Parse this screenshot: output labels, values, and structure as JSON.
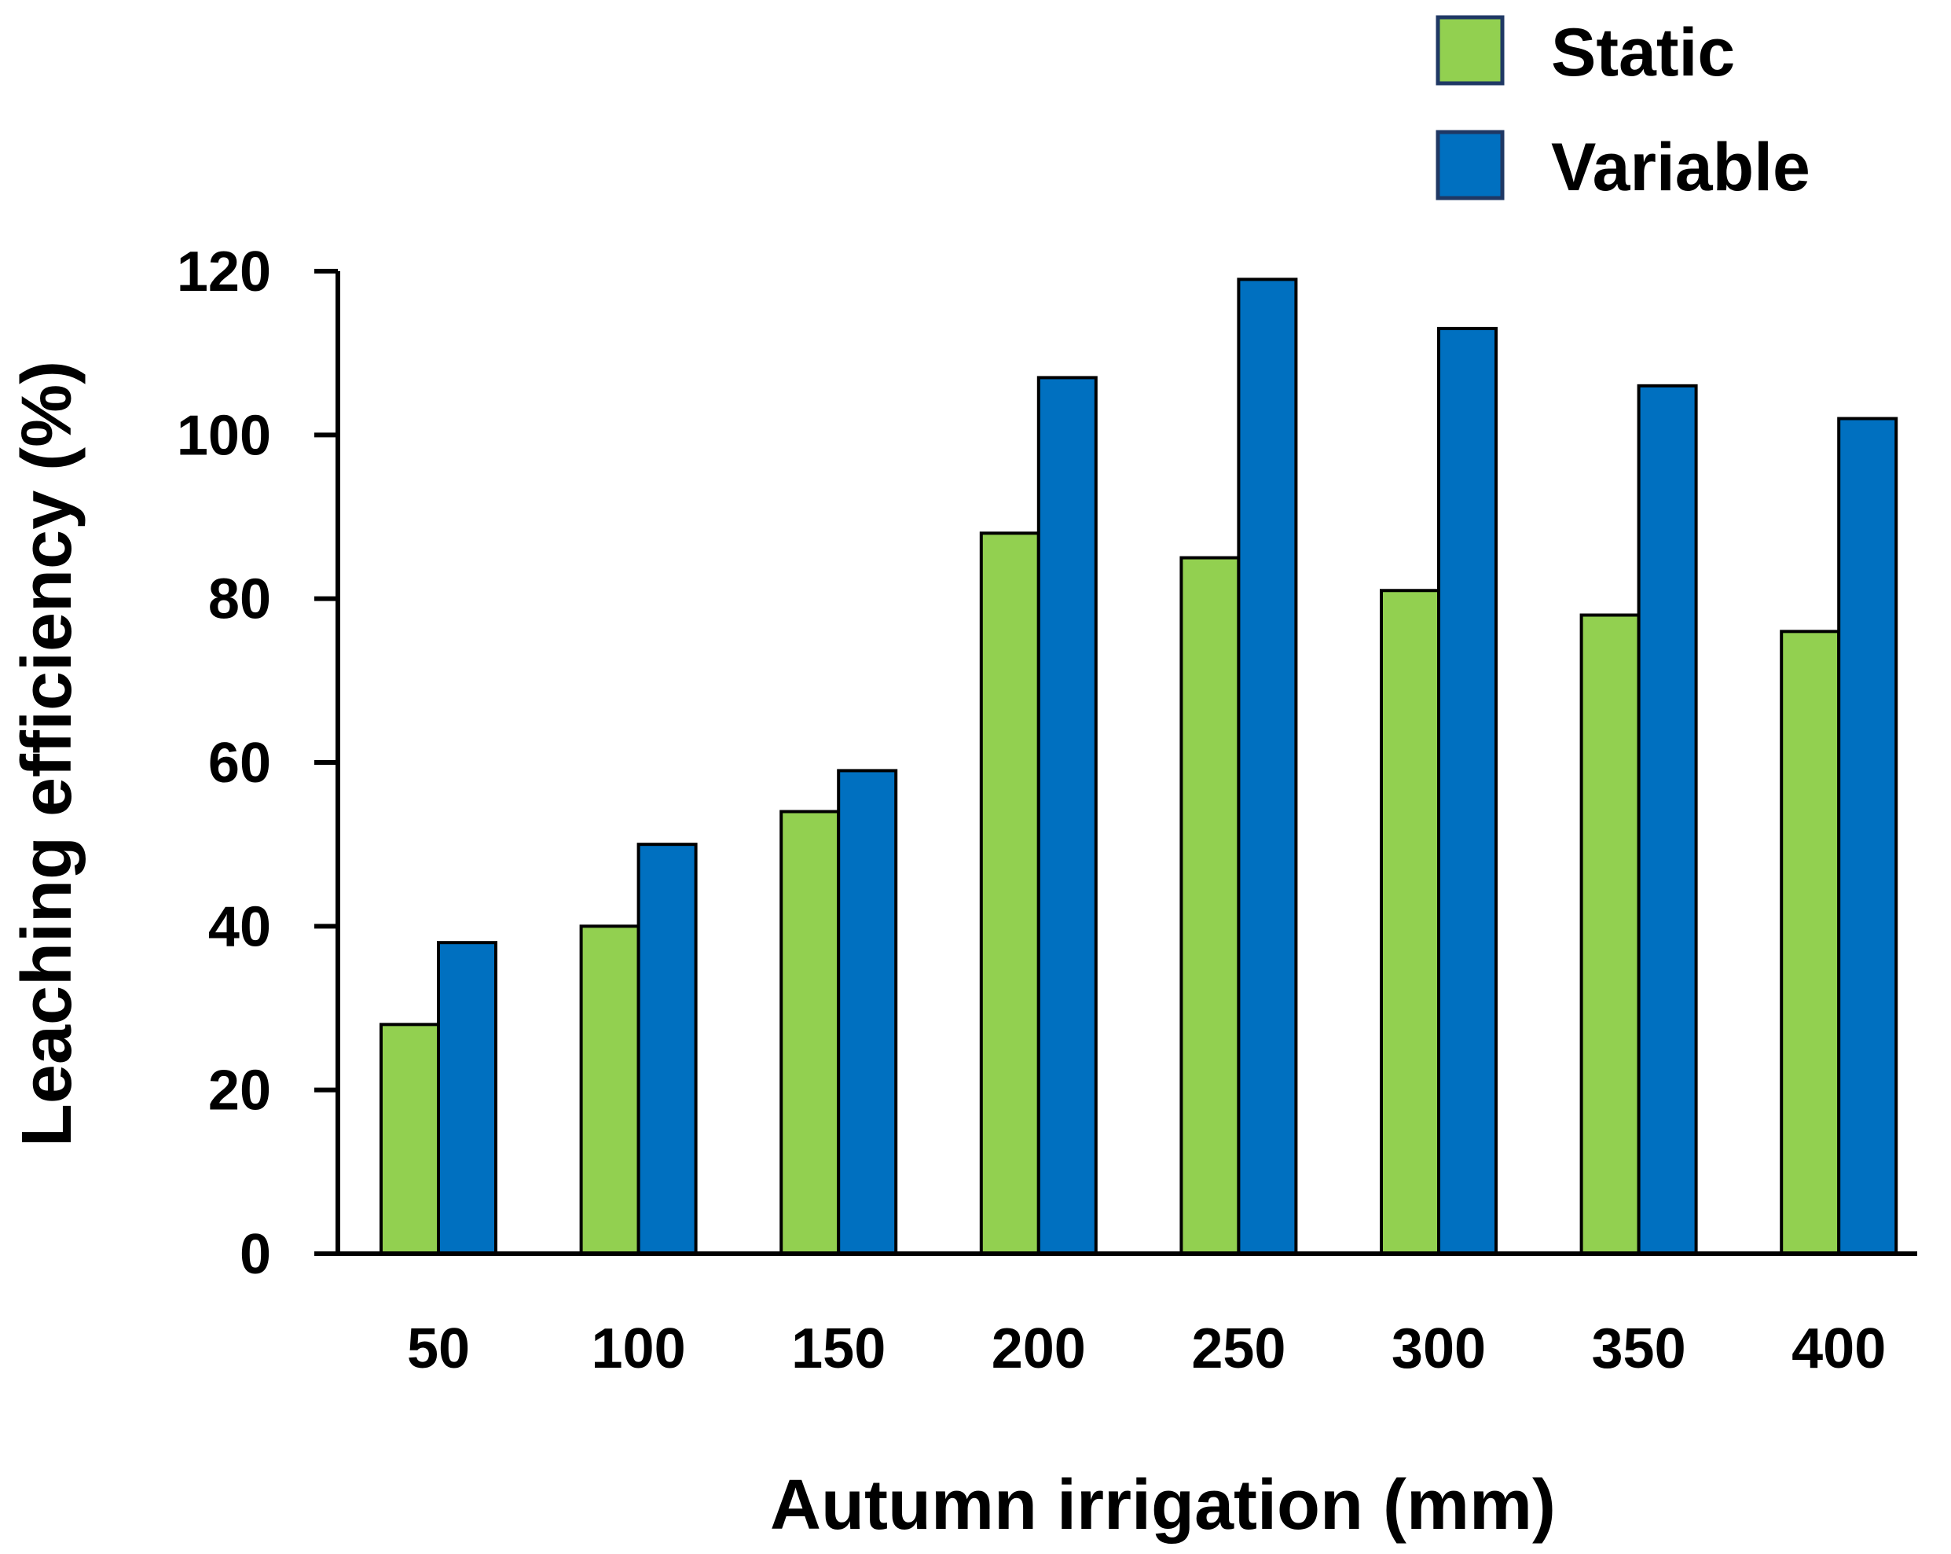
{
  "chart_data": {
    "type": "bar",
    "title": "",
    "xlabel": "Autumn irrigation (mm)",
    "ylabel": "Leaching efficiency (%)",
    "categories": [
      "50",
      "100",
      "150",
      "200",
      "250",
      "300",
      "350",
      "400"
    ],
    "series": [
      {
        "name": "Static",
        "color": "#92d050",
        "values": [
          28,
          40,
          54,
          88,
          85,
          81,
          78,
          76
        ]
      },
      {
        "name": "Variable",
        "color": "#0070c0",
        "values": [
          38,
          50,
          59,
          107,
          119,
          113,
          106,
          102
        ]
      }
    ],
    "ylim": [
      0,
      120
    ],
    "yticks": [
      "0",
      "20",
      "40",
      "60",
      "80",
      "100",
      "120"
    ],
    "grid": false,
    "legend_position": "top-right"
  }
}
